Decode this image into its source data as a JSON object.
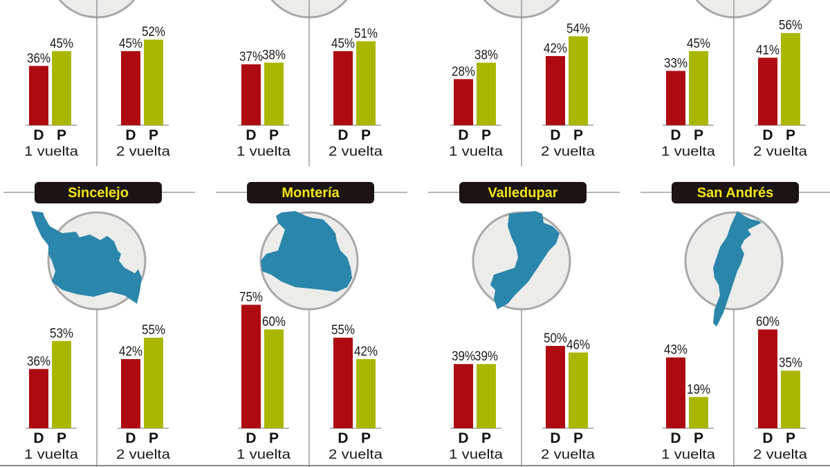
{
  "colors": {
    "D": "#ae0a11",
    "P": "#aab700",
    "map": "#2a86ab",
    "circle_fill": "#ececea",
    "circle_stroke": "#a8a8a8",
    "label_bg": "#1b1412",
    "label_text": "#f3e516",
    "rule": "#8a8a8a"
  },
  "chart_data": [
    {
      "type": "bar",
      "title": "",
      "categories": [
        "1 vuelta",
        "2 vuelta"
      ],
      "series": [
        {
          "name": "D",
          "values": [
            36,
            45
          ]
        },
        {
          "name": "P",
          "values": [
            45,
            52
          ]
        }
      ],
      "ylabel": "%",
      "ylim": [
        0,
        80
      ]
    },
    {
      "type": "bar",
      "title": "",
      "categories": [
        "1 vuelta",
        "2 vuelta"
      ],
      "series": [
        {
          "name": "D",
          "values": [
            37,
            45
          ]
        },
        {
          "name": "P",
          "values": [
            38,
            51
          ]
        }
      ],
      "ylabel": "%",
      "ylim": [
        0,
        80
      ]
    },
    {
      "type": "bar",
      "title": "",
      "categories": [
        "1 vuelta",
        "2 vuelta"
      ],
      "series": [
        {
          "name": "D",
          "values": [
            28,
            42
          ]
        },
        {
          "name": "P",
          "values": [
            38,
            54
          ]
        }
      ],
      "ylabel": "%",
      "ylim": [
        0,
        80
      ]
    },
    {
      "type": "bar",
      "title": "",
      "categories": [
        "1 vuelta",
        "2 vuelta"
      ],
      "series": [
        {
          "name": "D",
          "values": [
            33,
            41
          ]
        },
        {
          "name": "P",
          "values": [
            45,
            56
          ]
        }
      ],
      "ylabel": "%",
      "ylim": [
        0,
        80
      ]
    },
    {
      "type": "bar",
      "title": "Sincelejo",
      "categories": [
        "1 vuelta",
        "2 vuelta"
      ],
      "series": [
        {
          "name": "D",
          "values": [
            36,
            42
          ]
        },
        {
          "name": "P",
          "values": [
            53,
            55
          ]
        }
      ],
      "ylabel": "%",
      "ylim": [
        0,
        80
      ]
    },
    {
      "type": "bar",
      "title": "Montería",
      "categories": [
        "1 vuelta",
        "2 vuelta"
      ],
      "series": [
        {
          "name": "D",
          "values": [
            75,
            55
          ]
        },
        {
          "name": "P",
          "values": [
            60,
            42
          ]
        }
      ],
      "ylabel": "%",
      "ylim": [
        0,
        80
      ]
    },
    {
      "type": "bar",
      "title": "Valledupar",
      "categories": [
        "1 vuelta",
        "2 vuelta"
      ],
      "series": [
        {
          "name": "D",
          "values": [
            39,
            50
          ]
        },
        {
          "name": "P",
          "values": [
            39,
            46
          ]
        }
      ],
      "ylabel": "%",
      "ylim": [
        0,
        80
      ]
    },
    {
      "type": "bar",
      "title": "San Andrés",
      "categories": [
        "1 vuelta",
        "2 vuelta"
      ],
      "series": [
        {
          "name": "D",
          "values": [
            43,
            60
          ]
        },
        {
          "name": "P",
          "values": [
            19,
            35
          ]
        }
      ],
      "ylabel": "%",
      "ylim": [
        0,
        80
      ]
    }
  ],
  "legend": {
    "D": "D",
    "P": "P"
  },
  "percent_suffix": "%"
}
